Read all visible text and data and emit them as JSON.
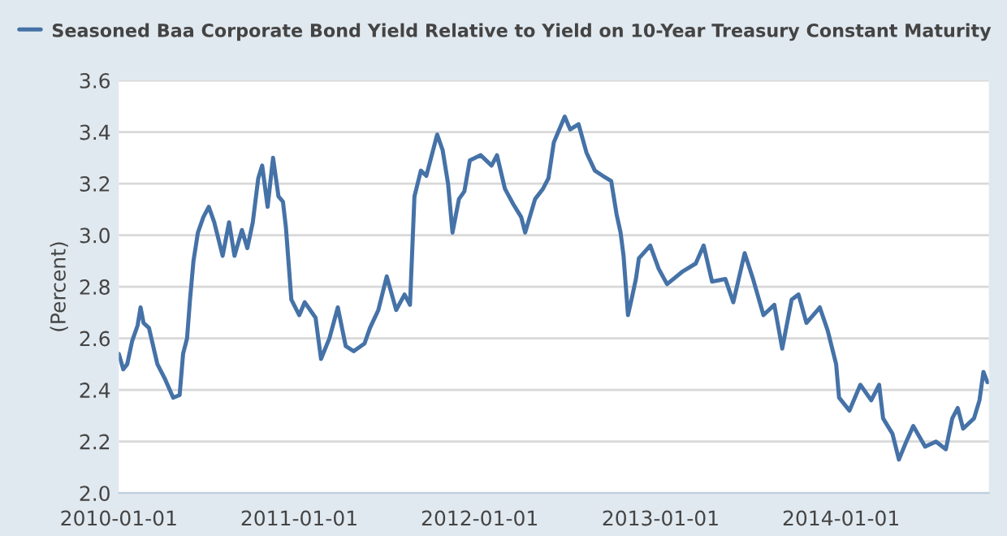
{
  "chart_data": {
    "type": "line",
    "ylabel": "(Percent)",
    "legend": "top",
    "x": [
      "2010-01-01",
      "2010-01-10",
      "2010-01-18",
      "2010-01-28",
      "2010-02-08",
      "2010-02-14",
      "2010-02-20",
      "2010-03-03",
      "2010-03-20",
      "2010-04-05",
      "2010-04-21",
      "2010-05-04",
      "2010-05-11",
      "2010-05-19",
      "2010-05-25",
      "2010-06-01",
      "2010-06-10",
      "2010-06-21",
      "2010-07-02",
      "2010-07-13",
      "2010-07-30",
      "2010-08-12",
      "2010-08-23",
      "2010-09-07",
      "2010-09-18",
      "2010-09-29",
      "2010-10-10",
      "2010-10-18",
      "2010-10-29",
      "2010-11-09",
      "2010-11-20",
      "2010-11-29",
      "2010-12-05",
      "2010-12-16",
      "2011-01-01",
      "2011-01-12",
      "2011-02-03",
      "2011-02-14",
      "2011-03-03",
      "2011-03-20",
      "2011-04-05",
      "2011-04-21",
      "2011-05-13",
      "2011-05-24",
      "2011-06-10",
      "2011-06-27",
      "2011-07-16",
      "2011-08-02",
      "2011-08-13",
      "2011-08-22",
      "2011-09-04",
      "2011-09-15",
      "2011-09-26",
      "2011-10-07",
      "2011-10-18",
      "2011-10-29",
      "2011-11-07",
      "2011-11-20",
      "2011-12-01",
      "2011-12-12",
      "2012-01-03",
      "2012-01-25",
      "2012-02-05",
      "2012-02-21",
      "2012-03-09",
      "2012-03-25",
      "2012-04-02",
      "2012-04-22",
      "2012-05-08",
      "2012-05-19",
      "2012-05-30",
      "2012-06-21",
      "2012-07-02",
      "2012-07-19",
      "2012-08-04",
      "2012-08-21",
      "2012-09-06",
      "2012-09-23",
      "2012-10-04",
      "2012-10-12",
      "2012-10-18",
      "2012-10-27",
      "2012-11-03",
      "2012-11-12",
      "2012-11-18",
      "2012-12-11",
      "2012-12-28",
      "2013-01-14",
      "2013-02-15",
      "2013-03-13",
      "2013-03-29",
      "2013-04-15",
      "2013-05-12",
      "2013-05-28",
      "2013-06-20",
      "2013-07-07",
      "2013-07-28",
      "2013-08-19",
      "2013-09-04",
      "2013-09-23",
      "2013-10-07",
      "2013-10-23",
      "2013-11-19",
      "2013-12-05",
      "2013-12-22",
      "2013-12-28",
      "2014-01-18",
      "2014-02-09",
      "2014-03-03",
      "2014-03-19",
      "2014-03-27",
      "2014-04-15",
      "2014-04-28",
      "2014-05-13",
      "2014-05-27",
      "2014-06-20",
      "2014-07-12",
      "2014-08-01",
      "2014-08-14",
      "2014-08-25",
      "2014-09-05",
      "2014-09-27",
      "2014-10-08",
      "2014-10-16",
      "2014-10-24"
    ],
    "series": [
      {
        "name": "Seasoned Baa Corporate Bond Yield Relative to Yield on 10-Year Treasury Constant Maturity",
        "color": "#4572a7",
        "values": [
          2.54,
          2.48,
          2.5,
          2.59,
          2.65,
          2.72,
          2.66,
          2.64,
          2.5,
          2.44,
          2.37,
          2.38,
          2.54,
          2.6,
          2.75,
          2.9,
          3.01,
          3.07,
          3.11,
          3.05,
          2.92,
          3.05,
          2.92,
          3.02,
          2.95,
          3.05,
          3.22,
          3.27,
          3.11,
          3.3,
          3.15,
          3.13,
          3.03,
          2.75,
          2.69,
          2.74,
          2.68,
          2.52,
          2.6,
          2.72,
          2.57,
          2.55,
          2.58,
          2.64,
          2.71,
          2.84,
          2.71,
          2.77,
          2.73,
          3.15,
          3.25,
          3.23,
          3.31,
          3.39,
          3.33,
          3.2,
          3.01,
          3.14,
          3.17,
          3.29,
          3.31,
          3.27,
          3.31,
          3.18,
          3.12,
          3.07,
          3.01,
          3.14,
          3.18,
          3.22,
          3.36,
          3.46,
          3.41,
          3.43,
          3.32,
          3.25,
          3.23,
          3.21,
          3.08,
          3.01,
          2.92,
          2.69,
          2.75,
          2.83,
          2.91,
          2.96,
          2.87,
          2.81,
          2.86,
          2.89,
          2.96,
          2.82,
          2.83,
          2.74,
          2.93,
          2.83,
          2.69,
          2.73,
          2.56,
          2.75,
          2.77,
          2.66,
          2.72,
          2.63,
          2.5,
          2.37,
          2.32,
          2.42,
          2.36,
          2.42,
          2.29,
          2.23,
          2.13,
          2.2,
          2.26,
          2.18,
          2.2,
          2.17,
          2.29,
          2.33,
          2.25,
          2.29,
          2.36,
          2.47,
          2.43
        ]
      }
    ],
    "xlim": [
      "2010-01-01",
      "2014-10-27"
    ],
    "xticks": [
      {
        "value": "2010-01-01",
        "label": "2010-01-01"
      },
      {
        "value": "2011-01-01",
        "label": "2011-01-01"
      },
      {
        "value": "2012-01-01",
        "label": "2012-01-01"
      },
      {
        "value": "2013-01-01",
        "label": "2013-01-01"
      },
      {
        "value": "2014-01-01",
        "label": "2014-01-01"
      }
    ],
    "ylim": [
      2.0,
      3.6
    ],
    "yticks": [
      {
        "value": 2.0,
        "label": "2.0"
      },
      {
        "value": 2.2,
        "label": "2.2"
      },
      {
        "value": 2.4,
        "label": "2.4"
      },
      {
        "value": 2.6,
        "label": "2.6"
      },
      {
        "value": 2.8,
        "label": "2.8"
      },
      {
        "value": 3.0,
        "label": "3.0"
      },
      {
        "value": 3.2,
        "label": "3.2"
      },
      {
        "value": 3.4,
        "label": "3.4"
      },
      {
        "value": 3.6,
        "label": "3.6"
      }
    ],
    "grid": "y"
  }
}
